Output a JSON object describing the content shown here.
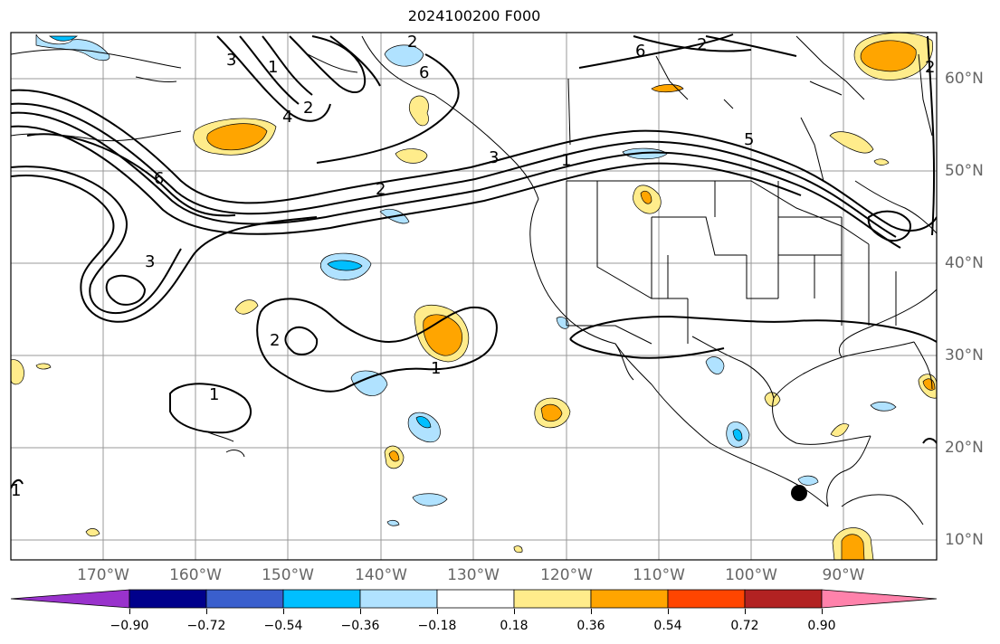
{
  "title": "2024100200 F000",
  "lon_labels": [
    "170°W",
    "160°W",
    "150°W",
    "140°W",
    "130°W",
    "120°W",
    "110°W",
    "100°W",
    "90°W"
  ],
  "lat_labels": [
    "60°N",
    "50°N",
    "40°N",
    "30°N",
    "20°N",
    "10°N"
  ],
  "colorbar": {
    "tick_labels": [
      "−0.90",
      "−0.72",
      "−0.54",
      "−0.36",
      "−0.18",
      "0.18",
      "0.36",
      "0.54",
      "0.72",
      "0.90"
    ],
    "colors": [
      "#9932cc",
      "#00008b",
      "#3a5fcd",
      "#00bfff",
      "#b0e2ff",
      "#ffffff",
      "#ffec8b",
      "#ffa500",
      "#ff4500",
      "#b22222",
      "#ff82ab"
    ]
  },
  "contour_labels": [
    "6",
    "2",
    "1",
    "3",
    "2",
    "1",
    "1",
    "2",
    "4",
    "6",
    "3",
    "2",
    "1",
    "6",
    "5",
    "2",
    "3",
    "2",
    "1"
  ],
  "marker": "station-dot"
}
